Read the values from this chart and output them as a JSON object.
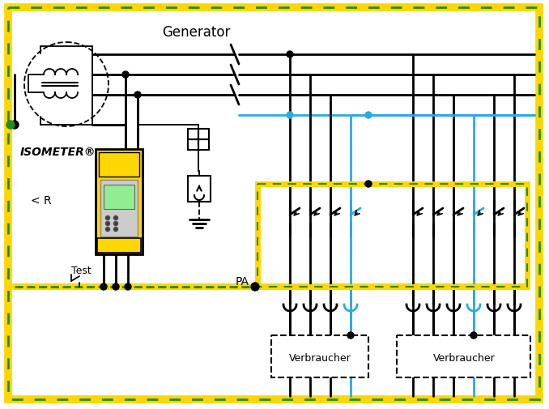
{
  "bg_color": "#ffffff",
  "border_yellow": "#FFD700",
  "border_green": "#228B22",
  "black": "#000000",
  "blue": "#29ABE2",
  "yellow": "#FFD700",
  "generator_label": "Generator",
  "isometer_label": "ISOMETER®",
  "r_label": "< R",
  "test_label": "Test",
  "pa_label": "PA",
  "verbraucher_label": "Verbraucher",
  "fig_width": 6.78,
  "fig_height": 5.06,
  "dpi": 100
}
